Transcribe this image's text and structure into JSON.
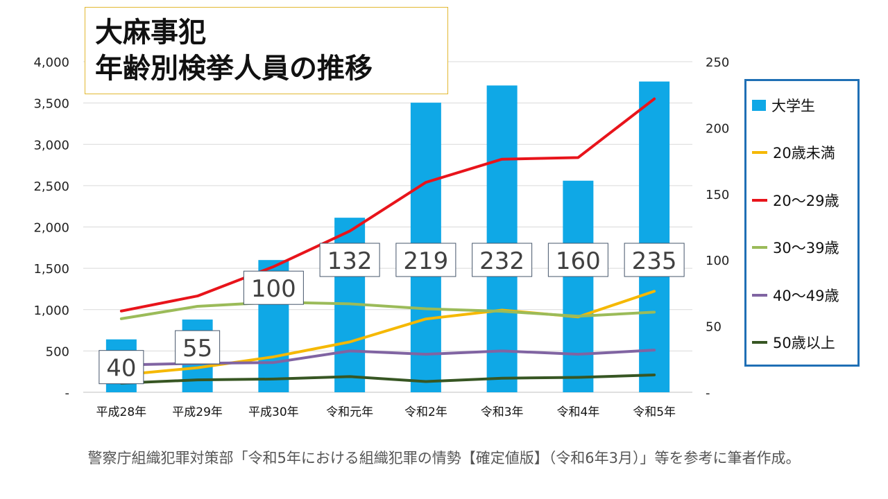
{
  "title": {
    "line1": "大麻事犯",
    "line2": "年齢別検挙人員の推移"
  },
  "footer": "警察庁組織犯罪対策部「令和5年における組織犯罪の情勢【確定値版】（令和6年3月）」等を参考に筆者作成。",
  "chart_data": {
    "type": "bar",
    "categories": [
      "平成28年",
      "平成29年",
      "平成30年",
      "令和元年",
      "令和2年",
      "令和3年",
      "令和4年",
      "令和5年"
    ],
    "left_axis": {
      "ylim": [
        0,
        4000
      ],
      "ticks": [
        "-",
        "500",
        "1,000",
        "1,500",
        "2,000",
        "2,500",
        "3,000",
        "3,500",
        "4,000"
      ]
    },
    "right_axis": {
      "ylim": [
        0,
        250
      ],
      "ticks": [
        "-",
        "50",
        "100",
        "150",
        "200",
        "250"
      ]
    },
    "grid": true,
    "legend_position": "right",
    "bar_series": {
      "name": "大学生",
      "axis": "right",
      "values": [
        40,
        55,
        100,
        132,
        219,
        232,
        160,
        235
      ],
      "color": "#0fa8e6"
    },
    "line_series": [
      {
        "name": "20歳未満",
        "axis": "left",
        "values": [
          210,
          297,
          429,
          609,
          887,
          994,
          912,
          1222
        ],
        "color": "#f5b800"
      },
      {
        "name": "20～29歳",
        "axis": "left",
        "values": [
          983,
          1165,
          1520,
          1950,
          2540,
          2820,
          2840,
          3550
        ],
        "color": "#e8141b"
      },
      {
        "name": "30～39歳",
        "axis": "left",
        "values": [
          890,
          1040,
          1090,
          1070,
          1010,
          980,
          920,
          970
        ],
        "color": "#9bbb59"
      },
      {
        "name": "40～49歳",
        "axis": "left",
        "values": [
          330,
          350,
          360,
          500,
          460,
          500,
          460,
          510
        ],
        "color": "#8064a2"
      },
      {
        "name": "50歳以上",
        "axis": "left",
        "values": [
          110,
          150,
          160,
          190,
          130,
          170,
          180,
          210
        ],
        "color": "#375623"
      }
    ]
  }
}
